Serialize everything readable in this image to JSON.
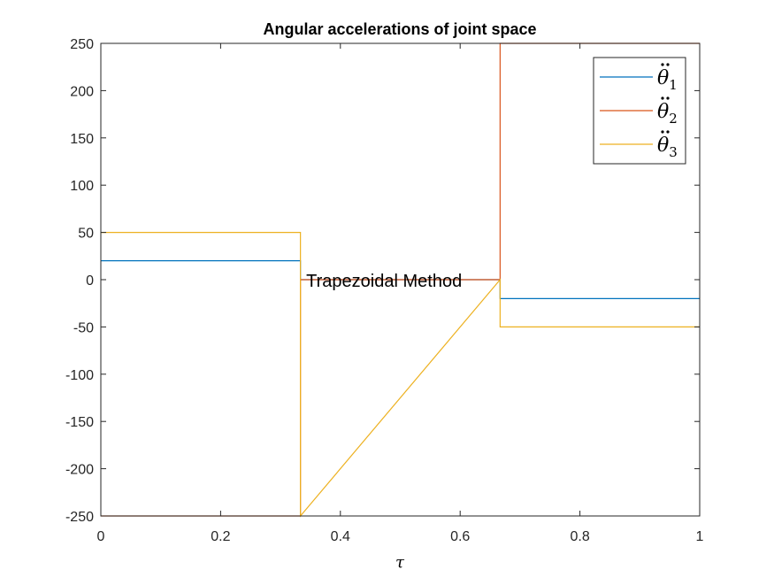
{
  "chart_data": {
    "type": "line",
    "title": "Angular accelerations of joint space",
    "xlabel": "τ",
    "ylabel": "",
    "xlim": [
      0,
      1
    ],
    "ylim": [
      -250,
      250
    ],
    "xticks": [
      0,
      0.2,
      0.4,
      0.6,
      0.8,
      1
    ],
    "xtick_labels": [
      "0",
      "0.2",
      "0.4",
      "0.6",
      "0.8",
      "1"
    ],
    "yticks": [
      250,
      200,
      150,
      100,
      50,
      0,
      -50,
      -100,
      -150,
      -200,
      -250
    ],
    "ytick_labels": [
      "250",
      "200",
      "150",
      "100",
      "50",
      "0",
      "-50",
      "-100",
      "-150",
      "-200",
      "-250"
    ],
    "grid": false,
    "legend_position": "top-right",
    "series": [
      {
        "name": "θ̈1",
        "legend_base": "θ",
        "legend_sub": "1",
        "color": "#0072BD",
        "x": [
          0,
          0.3333,
          0.3333,
          0.6667,
          0.6667,
          1
        ],
        "y": [
          20,
          20,
          0,
          0,
          -20,
          -20
        ]
      },
      {
        "name": "θ̈2",
        "legend_base": "θ",
        "legend_sub": "2",
        "color": "#D95319",
        "x": [
          0,
          0.3333,
          0.3333,
          0.6667,
          0.6667,
          1
        ],
        "y": [
          -250,
          -250,
          0,
          0,
          250,
          250
        ]
      },
      {
        "name": "θ̈3",
        "legend_base": "θ",
        "legend_sub": "3",
        "color": "#EDB120",
        "x": [
          0,
          0.3333,
          0.3333,
          0.6667,
          0.6667,
          1
        ],
        "y": [
          50,
          50,
          -250,
          0,
          -50,
          -50
        ]
      }
    ],
    "annotations": [
      {
        "text": "Trapezoidal Method",
        "x": 0.34,
        "y": 0
      }
    ]
  }
}
